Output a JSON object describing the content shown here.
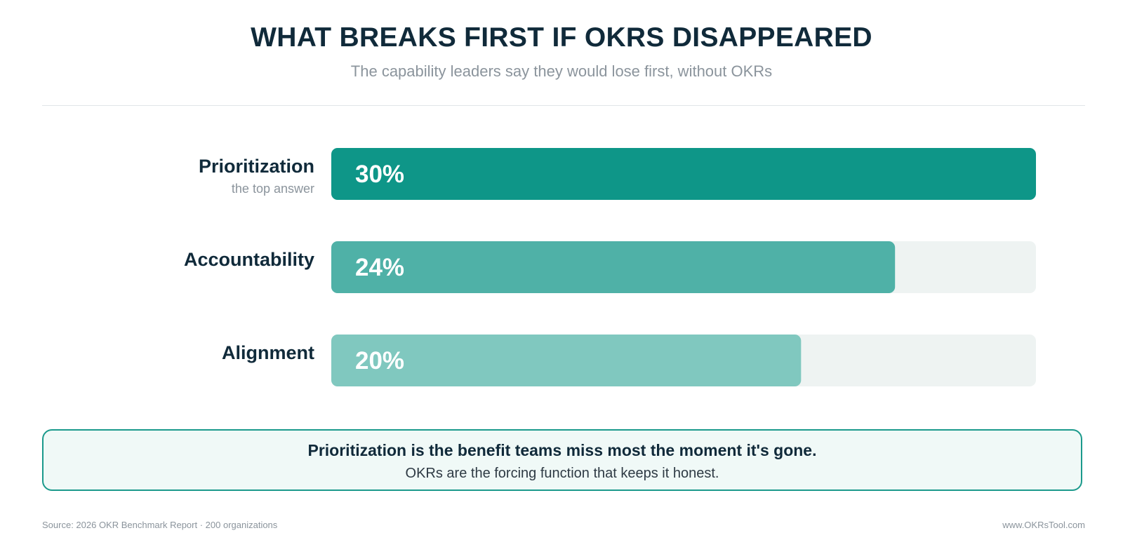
{
  "header": {
    "title": "WHAT BREAKS FIRST IF OKRS DISAPPEARED",
    "subtitle": "The capability leaders say they would lose first, without OKRs"
  },
  "chart_data": {
    "type": "bar",
    "orientation": "horizontal",
    "categories": [
      "Prioritization",
      "Accountability",
      "Alignment"
    ],
    "category_notes": [
      "the top answer",
      "",
      ""
    ],
    "values": [
      30,
      24,
      20
    ],
    "value_labels": [
      "30%",
      "24%",
      "20%"
    ],
    "unit": "%",
    "xlim": [
      0,
      30
    ],
    "grid": false,
    "legend": "none",
    "colors": [
      "#0e9688",
      "#4fb1a7",
      "#80c8bf"
    ],
    "track_color": "#eef3f2"
  },
  "callout": {
    "main": "Prioritization is the benefit teams miss most the moment it's gone.",
    "sub": "OKRs are the forcing function that keeps it honest."
  },
  "footer": {
    "source": "Source: 2026 OKR Benchmark Report · 200 organizations",
    "site": "www.OKRsTool.com"
  }
}
